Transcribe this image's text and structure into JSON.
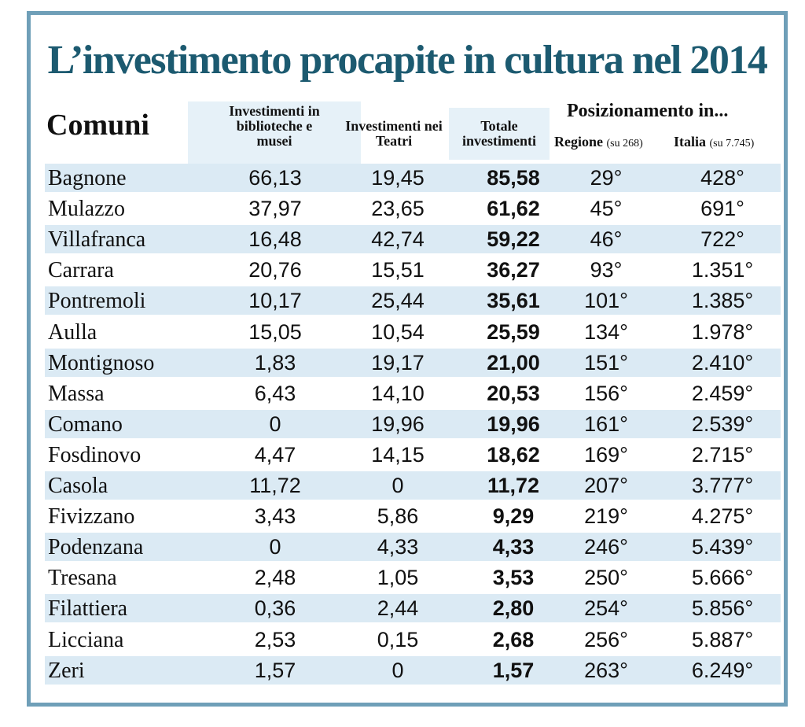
{
  "chart_data": {
    "type": "table",
    "title": "L’investimento procapite in cultura nel 2014",
    "header": {
      "comuni": "Comuni",
      "biblioteche": "Investimenti in biblioteche e musei",
      "teatri": "Investimenti nei Teatri",
      "totale": "Totale investimenti",
      "posizionamento": "Posizionamento in...",
      "regione": "Regione",
      "regione_note": "(su 268)",
      "italia": "Italia",
      "italia_note": "(su 7.745)"
    },
    "colors": {
      "title": "#1c5a70",
      "border": "#6f9fb8",
      "row_shade": "#dbeaf4"
    },
    "rows": [
      {
        "comune": "Bagnone",
        "biblioteche": "66,13",
        "teatri": "19,45",
        "totale": "85,58",
        "regione": "29°",
        "italia": "428°"
      },
      {
        "comune": "Mulazzo",
        "biblioteche": "37,97",
        "teatri": "23,65",
        "totale": "61,62",
        "regione": "45°",
        "italia": "691°"
      },
      {
        "comune": "Villafranca",
        "biblioteche": "16,48",
        "teatri": "42,74",
        "totale": "59,22",
        "regione": "46°",
        "italia": "722°"
      },
      {
        "comune": "Carrara",
        "biblioteche": "20,76",
        "teatri": "15,51",
        "totale": "36,27",
        "regione": "93°",
        "italia": "1.351°"
      },
      {
        "comune": "Pontremoli",
        "biblioteche": "10,17",
        "teatri": "25,44",
        "totale": "35,61",
        "regione": "101°",
        "italia": "1.385°"
      },
      {
        "comune": "Aulla",
        "biblioteche": "15,05",
        "teatri": "10,54",
        "totale": "25,59",
        "regione": "134°",
        "italia": "1.978°"
      },
      {
        "comune": "Montignoso",
        "biblioteche": "1,83",
        "teatri": "19,17",
        "totale": "21,00",
        "regione": "151°",
        "italia": "2.410°"
      },
      {
        "comune": "Massa",
        "biblioteche": "6,43",
        "teatri": "14,10",
        "totale": "20,53",
        "regione": "156°",
        "italia": "2.459°"
      },
      {
        "comune": "Comano",
        "biblioteche": "0",
        "teatri": "19,96",
        "totale": "19,96",
        "regione": "161°",
        "italia": "2.539°"
      },
      {
        "comune": "Fosdinovo",
        "biblioteche": "4,47",
        "teatri": "14,15",
        "totale": "18,62",
        "regione": "169°",
        "italia": "2.715°"
      },
      {
        "comune": "Casola",
        "biblioteche": "11,72",
        "teatri": "0",
        "totale": "11,72",
        "regione": "207°",
        "italia": "3.777°"
      },
      {
        "comune": "Fivizzano",
        "biblioteche": "3,43",
        "teatri": "5,86",
        "totale": "9,29",
        "regione": "219°",
        "italia": "4.275°"
      },
      {
        "comune": "Podenzana",
        "biblioteche": "0",
        "teatri": "4,33",
        "totale": "4,33",
        "regione": "246°",
        "italia": "5.439°"
      },
      {
        "comune": "Tresana",
        "biblioteche": "2,48",
        "teatri": "1,05",
        "totale": "3,53",
        "regione": "250°",
        "italia": "5.666°"
      },
      {
        "comune": "Filattiera",
        "biblioteche": "0,36",
        "teatri": "2,44",
        "totale": "2,80",
        "regione": "254°",
        "italia": "5.856°"
      },
      {
        "comune": "Licciana",
        "biblioteche": "2,53",
        "teatri": "0,15",
        "totale": "2,68",
        "regione": "256°",
        "italia": "5.887°"
      },
      {
        "comune": "Zeri",
        "biblioteche": "1,57",
        "teatri": "0",
        "totale": "1,57",
        "regione": "263°",
        "italia": "6.249°"
      }
    ]
  }
}
